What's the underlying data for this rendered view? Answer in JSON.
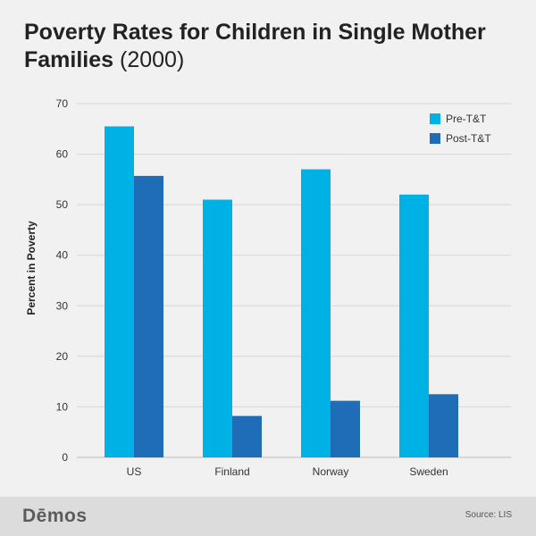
{
  "title": {
    "main": "Poverty Rates for Children in Single Mother Families",
    "year": "(2000)"
  },
  "chart_data": {
    "type": "bar",
    "title": "Poverty Rates for Children in Single Mother Families (2000)",
    "categories": [
      "US",
      "Finland",
      "Norway",
      "Sweden"
    ],
    "series": [
      {
        "name": "Pre-T&T",
        "values": [
          65.5,
          51,
          57,
          52
        ],
        "color": "#00b1e5"
      },
      {
        "name": "Post-T&T",
        "values": [
          55.7,
          8.2,
          11.2,
          12.5
        ],
        "color": "#1f6db6"
      }
    ],
    "xlabel": "",
    "ylabel": "Percent in Poverty",
    "ylim": [
      0,
      70
    ],
    "yticks": [
      0,
      10,
      20,
      30,
      40,
      50,
      60,
      70
    ],
    "grid": true,
    "legend": "top-right"
  },
  "footer": {
    "logo": "Dēmos",
    "source": "Source: LIS"
  },
  "colors": {
    "background": "#f1f1f1",
    "footer": "#dcdcdc",
    "grid": "#d7d7d7",
    "pre": "#00b1e5",
    "post": "#1f6db6"
  }
}
